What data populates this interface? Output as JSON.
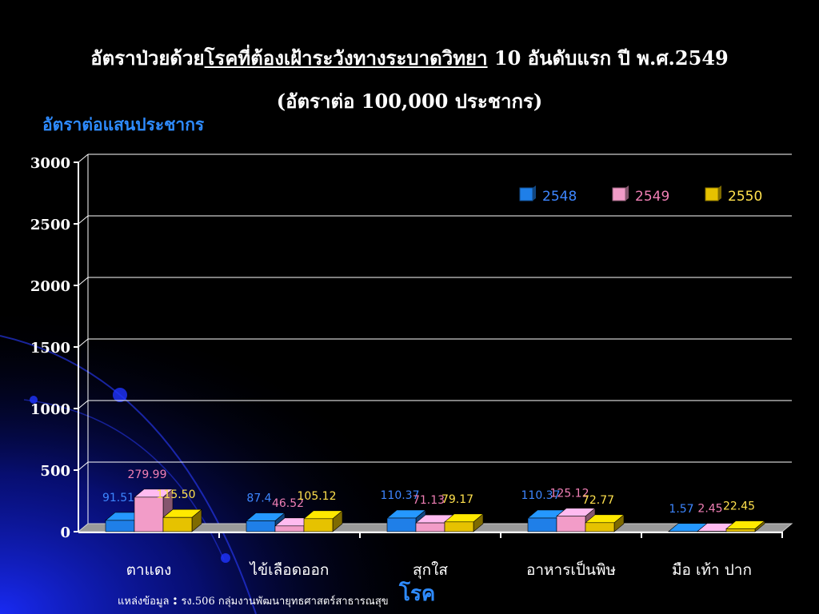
{
  "title": {
    "line1_prefix": "อัตราป่วยด้วย",
    "line1_underlined": "โรคที่ต้องเฝ้าระวังทางระบาดวิทยา",
    "line1_suffix": " 10 อันดับแรก ปี พ.ศ.2549",
    "line2": "(อัตราต่อ 100,000 ประชากร)"
  },
  "source": {
    "label": "แหล่งข้อมูล",
    "colon": ":",
    "text": "รง.506 กลุ่มงานพัฒนายุทธศาสตร์สาธารณสุข"
  },
  "colors": {
    "background": "#000000",
    "axis_title": "#2e8bff",
    "series": [
      "#1f7fe8",
      "#f29cc8",
      "#e6c200"
    ],
    "series_labels": [
      "#3d86ff",
      "#f07fb5",
      "#ffe14d"
    ]
  },
  "chart_data": {
    "type": "bar",
    "style": "3d-clustered",
    "title": "อัตราป่วยด้วยโรคที่ต้องเฝ้าระวังทางระบาดวิทยา 10 อันดับแรก ปี พ.ศ.2549",
    "ylabel": "อัตราต่อแสนประชากร",
    "xlabel": "โรค",
    "ylim": [
      0,
      3000
    ],
    "yticks": [
      0,
      500,
      1000,
      1500,
      2000,
      2500,
      3000
    ],
    "grid": true,
    "legend_position": "top-right",
    "categories": [
      "ตาแดง",
      "ไข้เลือดออก",
      "สุกใส",
      "อาหารเป็นพิษ",
      "มือ เท้า ปาก"
    ],
    "series": [
      {
        "name": "2548",
        "values": [
          91.51,
          87.4,
          110.37,
          110.37,
          1.57
        ],
        "labels": [
          "91.51",
          "87.4",
          "110.37",
          "110.37",
          "1.57"
        ]
      },
      {
        "name": "2549",
        "values": [
          279.99,
          46.52,
          71.13,
          125.12,
          2.45
        ],
        "labels": [
          "279.99",
          "46.52",
          "71.13",
          "125.12",
          "2.45"
        ]
      },
      {
        "name": "2550",
        "values": [
          115.5,
          105.12,
          79.17,
          72.77,
          22.45
        ],
        "labels": [
          "115.50",
          "105.12",
          "79.17",
          "72.77",
          "22.45"
        ]
      }
    ]
  }
}
